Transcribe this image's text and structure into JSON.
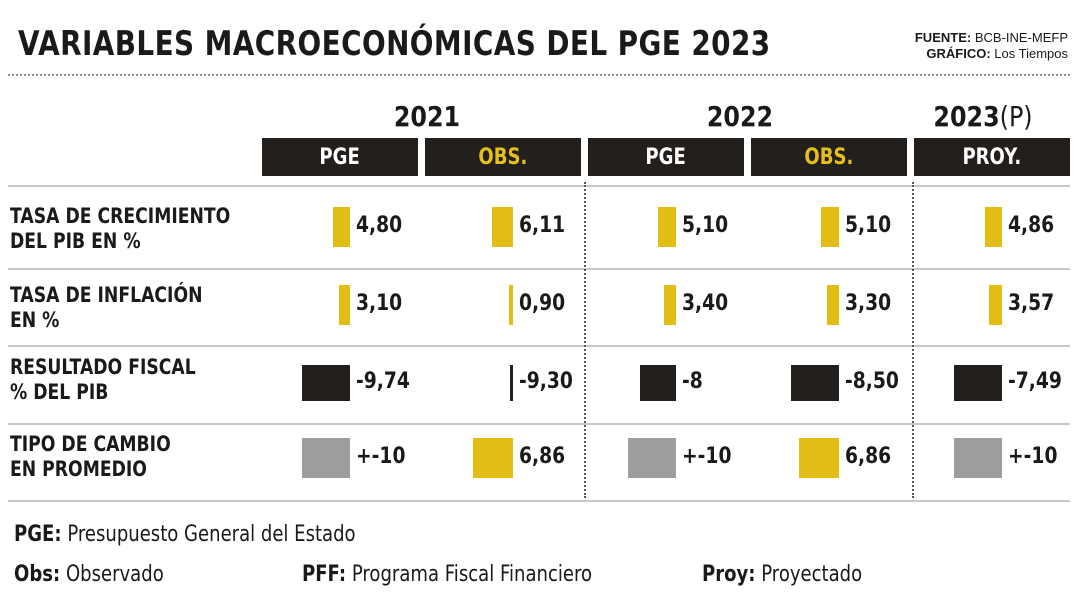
{
  "title": "VARIABLES MACROECONÓMICAS DEL PGE 2023",
  "credits": {
    "source_label": "FUENTE:",
    "source_value": "BCB-INE-MEFP",
    "graphic_label": "GRÁFICO:",
    "graphic_value": "Los Tiempos"
  },
  "years": [
    {
      "label": "2021",
      "suffix": ""
    },
    {
      "label": "2022",
      "suffix": ""
    },
    {
      "label": "2023",
      "suffix": "(P)"
    }
  ],
  "column_headers": [
    "PGE",
    "OBS.",
    "PGE",
    "OBS.",
    "PROY."
  ],
  "row_labels": [
    [
      "TASA DE CRECIMIENTO",
      "DEL PIB EN %"
    ],
    [
      "TASA DE INFLACIÓN",
      "EN %"
    ],
    [
      "RESULTADO FISCAL",
      "% DEL PIB"
    ],
    [
      "TIPO DE CAMBIO",
      "EN PROMEDIO"
    ]
  ],
  "colors": {
    "yellow": "#e2bd15",
    "black": "#221f1d",
    "gray": "#9d9d9d",
    "header_bg": "#221f1d",
    "obs_text": "#e5c01a"
  },
  "chart_data": {
    "type": "table",
    "title": "VARIABLES MACROECONÓMICAS DEL PGE 2023",
    "columns": [
      "2021 PGE",
      "2021 OBS.",
      "2022 PGE",
      "2022 OBS.",
      "2023 PROY."
    ],
    "rows": [
      {
        "name": "TASA DE CRECIMIENTO DEL PIB EN %",
        "color": "yellow",
        "values": [
          4.8,
          6.11,
          5.1,
          5.1,
          4.86
        ],
        "labels": [
          "4,80",
          "6,11",
          "5,10",
          "5,10",
          "4,86"
        ]
      },
      {
        "name": "TASA DE INFLACIÓN EN %",
        "color": "yellow",
        "values": [
          3.1,
          0.9,
          3.4,
          3.3,
          3.57
        ],
        "labels": [
          "3,10",
          "0,90",
          "3,40",
          "3,30",
          "3,57"
        ]
      },
      {
        "name": "RESULTADO FISCAL % DEL PIB",
        "color": "black",
        "values": [
          -9.74,
          -9.3,
          -8,
          -8.5,
          -7.49
        ],
        "labels": [
          "-9,74",
          "-9,30",
          "-8",
          "-8,50",
          "-7,49"
        ]
      },
      {
        "name": "TIPO DE CAMBIO EN PROMEDIO",
        "color": [
          "gray",
          "yellow",
          "gray",
          "yellow",
          "gray"
        ],
        "values": [
          null,
          6.86,
          null,
          6.86,
          null
        ],
        "labels": [
          "+-10",
          "6,86",
          "+-10",
          "6,86",
          "+-10"
        ]
      }
    ]
  },
  "legend": {
    "pge_key": "PGE:",
    "pge_value": "Presupuesto General del Estado",
    "obs_key": "Obs:",
    "obs_value": "Observado",
    "pff_key": "PFF:",
    "pff_value": "Programa Fiscal Financiero",
    "proy_key": "Proy:",
    "proy_value": "Proyectado"
  }
}
